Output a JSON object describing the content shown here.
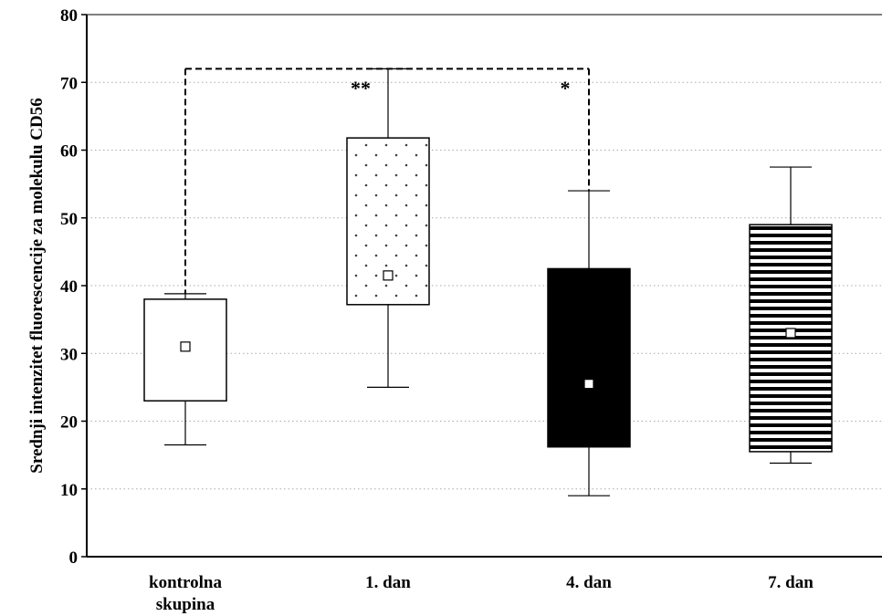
{
  "chart_data": {
    "type": "box",
    "ylabel": "Srednji intenzitet  fluorescencije za molekulu CD56",
    "ylim": [
      0,
      80
    ],
    "yticks": [
      "0",
      "10",
      "20",
      "30",
      "40",
      "50",
      "60",
      "70",
      "80"
    ],
    "grid": "horizontal-dotted",
    "categories": [
      {
        "line1": "kontrolna",
        "line2": "skupina"
      },
      {
        "line1": "1. dan",
        "line2": ""
      },
      {
        "line1": "4. dan",
        "line2": ""
      },
      {
        "line1": "7. dan",
        "line2": ""
      }
    ],
    "boxes": [
      {
        "min": 16.5,
        "q1": 23,
        "median": 31,
        "q3": 38,
        "max": 38.8,
        "pattern": "none"
      },
      {
        "min": 25,
        "q1": 37.2,
        "median": 41.5,
        "q3": 61.8,
        "max": 72,
        "pattern": "dots"
      },
      {
        "min": 9,
        "q1": 16.2,
        "median": 25.5,
        "q3": 42.5,
        "max": 54,
        "pattern": "solid"
      },
      {
        "min": 13.8,
        "q1": 15.5,
        "median": 33,
        "q3": 49,
        "max": 57.5,
        "pattern": "horizontal-stripes"
      }
    ],
    "significance": {
      "bracket_y": 72,
      "from_index": 0,
      "to_index": 2,
      "annotations": [
        {
          "index": 1,
          "label": "**",
          "y": 69.5
        },
        {
          "index": 2,
          "label": "*",
          "y": 69.5
        }
      ]
    },
    "colors": {
      "box_solid": "#000000",
      "line": "#000000",
      "grid": "#aaaaaa"
    }
  }
}
